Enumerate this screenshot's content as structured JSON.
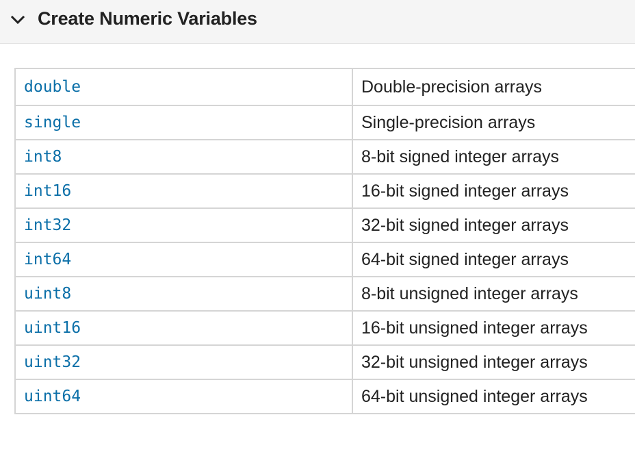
{
  "section": {
    "title": "Create Numeric Variables",
    "expanded": true,
    "icon": "chevron-down-icon"
  },
  "functions": [
    {
      "name": "double",
      "description": "Double-precision arrays"
    },
    {
      "name": "single",
      "description": "Single-precision arrays"
    },
    {
      "name": "int8",
      "description": "8-bit signed integer arrays"
    },
    {
      "name": "int16",
      "description": "16-bit signed integer arrays"
    },
    {
      "name": "int32",
      "description": "32-bit signed integer arrays"
    },
    {
      "name": "int64",
      "description": "64-bit signed integer arrays"
    },
    {
      "name": "uint8",
      "description": "8-bit unsigned integer arrays"
    },
    {
      "name": "uint16",
      "description": "16-bit unsigned integer arrays"
    },
    {
      "name": "uint32",
      "description": "32-bit unsigned integer arrays"
    },
    {
      "name": "uint64",
      "description": "64-bit unsigned integer arrays"
    }
  ],
  "colors": {
    "link": "#0b6fa8",
    "text": "#222222",
    "header_bg": "#f5f5f5",
    "border": "#d5d5d5"
  }
}
